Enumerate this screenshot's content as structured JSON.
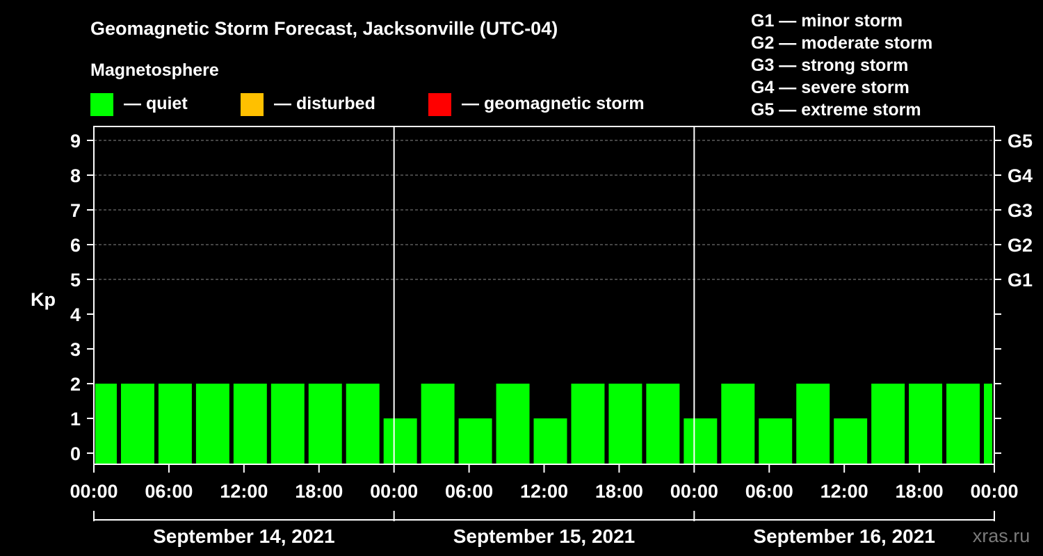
{
  "chart_data": {
    "type": "bar",
    "title": "Geomagnetic Storm Forecast, Jacksonville (UTC-04)",
    "legend_title": "Magnetosphere",
    "legend": [
      {
        "label": "— quiet",
        "color": "#00ff00"
      },
      {
        "label": "— disturbed",
        "color": "#ffc000"
      },
      {
        "label": "— geomagnetic storm",
        "color": "#ff0000"
      }
    ],
    "storm_scale": [
      "G1 — minor storm",
      "G2 — moderate storm",
      "G3 — strong storm",
      "G4 — severe storm",
      "G5 — extreme storm"
    ],
    "ylabel": "Kp",
    "ylim": [
      0,
      9
    ],
    "y_ticks": [
      "0",
      "1",
      "2",
      "3",
      "4",
      "5",
      "6",
      "7",
      "8",
      "9"
    ],
    "g_levels": [
      {
        "kp": 5,
        "label": "G1"
      },
      {
        "kp": 6,
        "label": "G2"
      },
      {
        "kp": 7,
        "label": "G3"
      },
      {
        "kp": 8,
        "label": "G4"
      },
      {
        "kp": 9,
        "label": "G5"
      }
    ],
    "x_range_hours": [
      0,
      72
    ],
    "x_ticks": [
      {
        "hour": 0,
        "label": "00:00"
      },
      {
        "hour": 6,
        "label": "06:00"
      },
      {
        "hour": 12,
        "label": "12:00"
      },
      {
        "hour": 18,
        "label": "18:00"
      },
      {
        "hour": 24,
        "label": "00:00"
      },
      {
        "hour": 30,
        "label": "06:00"
      },
      {
        "hour": 36,
        "label": "12:00"
      },
      {
        "hour": 42,
        "label": "18:00"
      },
      {
        "hour": 48,
        "label": "00:00"
      },
      {
        "hour": 54,
        "label": "06:00"
      },
      {
        "hour": 60,
        "label": "12:00"
      },
      {
        "hour": 66,
        "label": "18:00"
      },
      {
        "hour": 72,
        "label": "00:00"
      }
    ],
    "days": [
      {
        "label": "September 14, 2021",
        "start_hour": 0
      },
      {
        "label": "September 15, 2021",
        "start_hour": 24
      },
      {
        "label": "September 16, 2021",
        "start_hour": 48
      }
    ],
    "series": [
      {
        "name": "Kp",
        "bars": [
          {
            "start": 0,
            "end": 2,
            "kp": 2,
            "status": "quiet"
          },
          {
            "start": 2,
            "end": 5,
            "kp": 2,
            "status": "quiet"
          },
          {
            "start": 5,
            "end": 8,
            "kp": 2,
            "status": "quiet"
          },
          {
            "start": 8,
            "end": 11,
            "kp": 2,
            "status": "quiet"
          },
          {
            "start": 11,
            "end": 14,
            "kp": 2,
            "status": "quiet"
          },
          {
            "start": 14,
            "end": 17,
            "kp": 2,
            "status": "quiet"
          },
          {
            "start": 17,
            "end": 20,
            "kp": 2,
            "status": "quiet"
          },
          {
            "start": 20,
            "end": 23,
            "kp": 2,
            "status": "quiet"
          },
          {
            "start": 23,
            "end": 26,
            "kp": 1,
            "status": "quiet"
          },
          {
            "start": 26,
            "end": 29,
            "kp": 2,
            "status": "quiet"
          },
          {
            "start": 29,
            "end": 32,
            "kp": 1,
            "status": "quiet"
          },
          {
            "start": 32,
            "end": 35,
            "kp": 2,
            "status": "quiet"
          },
          {
            "start": 35,
            "end": 38,
            "kp": 1,
            "status": "quiet"
          },
          {
            "start": 38,
            "end": 41,
            "kp": 2,
            "status": "quiet"
          },
          {
            "start": 41,
            "end": 44,
            "kp": 2,
            "status": "quiet"
          },
          {
            "start": 44,
            "end": 47,
            "kp": 2,
            "status": "quiet"
          },
          {
            "start": 47,
            "end": 50,
            "kp": 1,
            "status": "quiet"
          },
          {
            "start": 50,
            "end": 53,
            "kp": 2,
            "status": "quiet"
          },
          {
            "start": 53,
            "end": 56,
            "kp": 1,
            "status": "quiet"
          },
          {
            "start": 56,
            "end": 59,
            "kp": 2,
            "status": "quiet"
          },
          {
            "start": 59,
            "end": 62,
            "kp": 1,
            "status": "quiet"
          },
          {
            "start": 62,
            "end": 65,
            "kp": 2,
            "status": "quiet"
          },
          {
            "start": 65,
            "end": 68,
            "kp": 2,
            "status": "quiet"
          },
          {
            "start": 68,
            "end": 71,
            "kp": 2,
            "status": "quiet"
          },
          {
            "start": 71,
            "end": 72,
            "kp": 2,
            "status": "quiet"
          }
        ]
      }
    ],
    "colors": {
      "quiet": "#00ff00",
      "disturbed": "#ffc000",
      "storm": "#ff0000",
      "background": "#000000",
      "axis": "#ffffff"
    },
    "watermark": "xras.ru"
  }
}
